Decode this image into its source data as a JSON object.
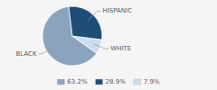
{
  "chart_data": {
    "type": "pie",
    "categories": [
      "BLACK",
      "WHITE",
      "HISPANIC"
    ],
    "values": [
      63.2,
      7.9,
      28.9
    ],
    "colors": [
      "#8aa4be",
      "#ccdded",
      "#1e4d78"
    ],
    "legend": "bottom",
    "legend_entries": [
      {
        "label": "63.2%",
        "color": "#8aa4be"
      },
      {
        "label": "28.9%",
        "color": "#1e4d78"
      },
      {
        "label": "7.9%",
        "color": "#ccdded"
      }
    ]
  }
}
